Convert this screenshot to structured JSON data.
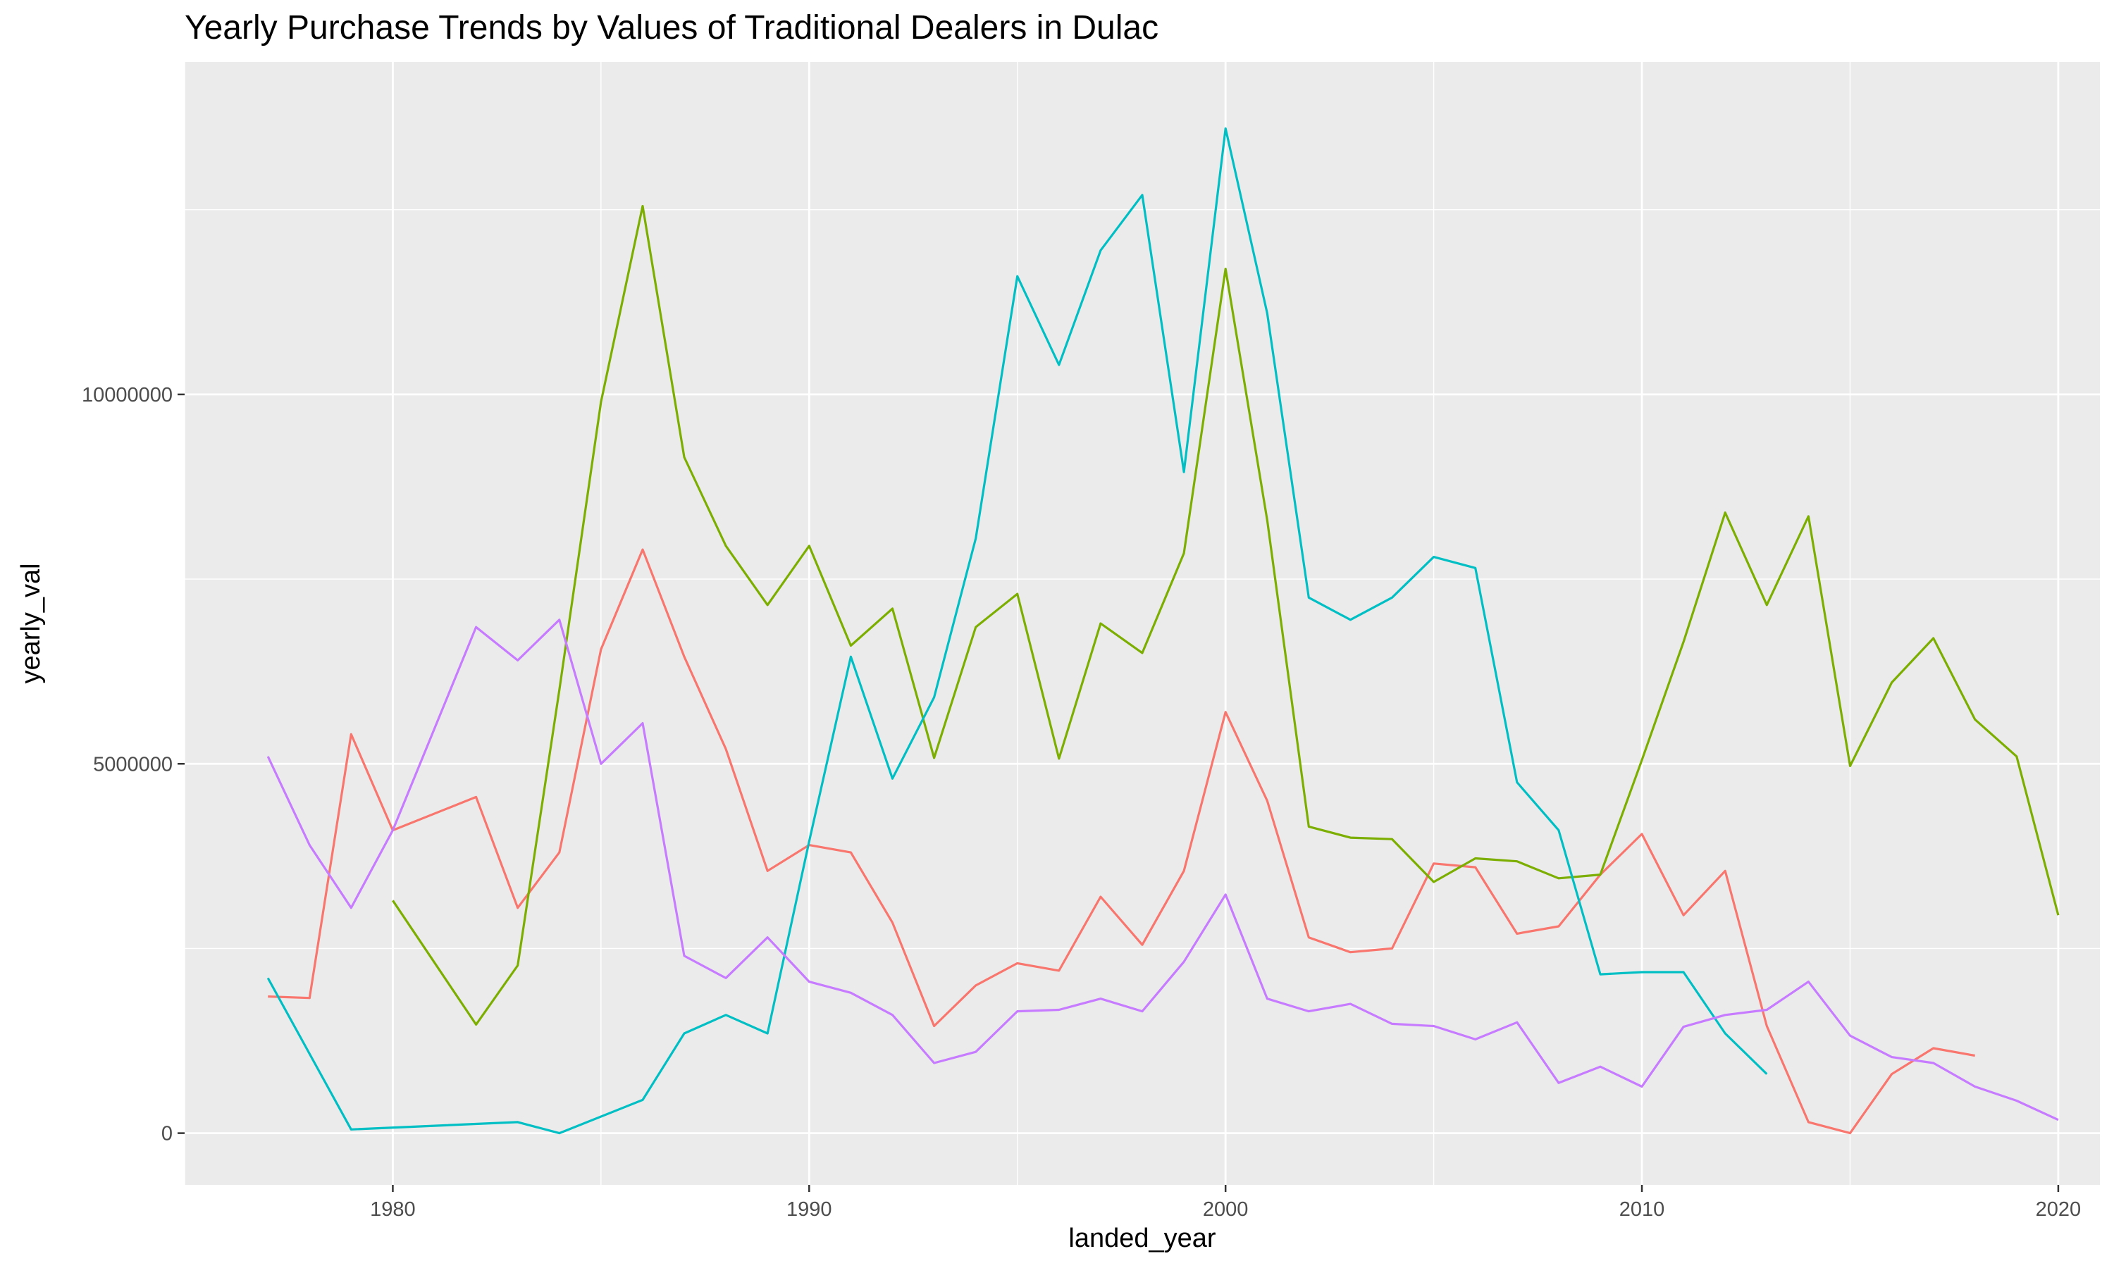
{
  "chart_data": {
    "type": "line",
    "title": "Yearly Purchase Trends by Values of Traditional Dealers in Dulac",
    "xlabel": "landed_year",
    "ylabel": "yearly_val",
    "xlim": [
      1975,
      2021
    ],
    "ylim": [
      -700000,
      14500000
    ],
    "x_ticks": [
      1980,
      1990,
      2000,
      2010,
      2020
    ],
    "y_ticks": [
      0,
      5000000,
      10000000
    ],
    "y_tick_labels": [
      "0",
      "5000000",
      "10000000"
    ],
    "grid": true,
    "legend": "none",
    "series": [
      {
        "color": "#F8766D",
        "x": [
          1977,
          1978,
          1979,
          1980,
          1982,
          1983,
          1984,
          1985,
          1986,
          1987,
          1988,
          1989,
          1990,
          1991,
          1992,
          1993,
          1994,
          1995,
          1996,
          1997,
          1998,
          1999,
          2000,
          2001,
          2002,
          2003,
          2004,
          2005,
          2006,
          2007,
          2008,
          2009,
          2010,
          2011,
          2012,
          2013,
          2014,
          2015,
          2016,
          2017,
          2018
        ],
        "y": [
          1850000,
          1830000,
          5400000,
          4100000,
          4550000,
          3050000,
          3800000,
          6550000,
          7900000,
          6450000,
          5200000,
          3550000,
          3900000,
          3800000,
          2850000,
          1450000,
          2000000,
          2300000,
          2200000,
          3200000,
          2550000,
          3550000,
          5700000,
          4500000,
          2650000,
          2450000,
          2500000,
          3650000,
          3600000,
          2700000,
          2800000,
          3500000,
          4050000,
          2950000,
          3550000,
          1450000,
          150000,
          0,
          800000,
          1150000,
          1050000
        ]
      },
      {
        "color": "#7CAE00",
        "x": [
          1980,
          1982,
          1983,
          1984,
          1985,
          1986,
          1987,
          1988,
          1989,
          1990,
          1991,
          1992,
          1993,
          1994,
          1995,
          1996,
          1997,
          1998,
          1999,
          2000,
          2001,
          2002,
          2003,
          2004,
          2005,
          2006,
          2007,
          2008,
          2009,
          2010,
          2011,
          2012,
          2013,
          2014,
          2015,
          2016,
          2017,
          2018,
          2019,
          2020
        ],
        "y": [
          3150000,
          1470000,
          2270000,
          6000000,
          9900000,
          12550000,
          9150000,
          7950000,
          7150000,
          7950000,
          6600000,
          7100000,
          5080000,
          6850000,
          7300000,
          5070000,
          6900000,
          6500000,
          7850000,
          11700000,
          8300000,
          4150000,
          4000000,
          3980000,
          3400000,
          3720000,
          3680000,
          3450000,
          3500000,
          5050000,
          6650000,
          8400000,
          7150000,
          8350000,
          4970000,
          6100000,
          6700000,
          5600000,
          5100000,
          2950000
        ]
      },
      {
        "color": "#00BFC4",
        "x": [
          1977,
          1979,
          1983,
          1984,
          1986,
          1987,
          1988,
          1989,
          1990,
          1991,
          1992,
          1993,
          1994,
          1995,
          1996,
          1997,
          1998,
          1999,
          2000,
          2001,
          2002,
          2003,
          2004,
          2005,
          2006,
          2007,
          2008,
          2009,
          2010,
          2011,
          2012,
          2013
        ],
        "y": [
          2100000,
          50000,
          150000,
          0,
          450000,
          1350000,
          1600000,
          1350000,
          3950000,
          6450000,
          4800000,
          5900000,
          8050000,
          11600000,
          10400000,
          11950000,
          12700000,
          8950000,
          13600000,
          11100000,
          7250000,
          6950000,
          7250000,
          7800000,
          7650000,
          4750000,
          4100000,
          2150000,
          2180000,
          2180000,
          1350000,
          800000
        ]
      },
      {
        "color": "#C77CFF",
        "x": [
          1977,
          1978,
          1979,
          1980,
          1982,
          1983,
          1984,
          1985,
          1986,
          1987,
          1988,
          1989,
          1990,
          1991,
          1992,
          1993,
          1994,
          1995,
          1996,
          1997,
          1998,
          1999,
          2000,
          2001,
          2002,
          2003,
          2004,
          2005,
          2006,
          2007,
          2008,
          2009,
          2010,
          2011,
          2012,
          2013,
          2014,
          2015,
          2016,
          2017,
          2018,
          2019,
          2020
        ],
        "y": [
          5100000,
          3900000,
          3050000,
          4100000,
          6850000,
          6400000,
          6950000,
          5000000,
          5550000,
          2400000,
          2100000,
          2650000,
          2050000,
          1900000,
          1600000,
          950000,
          1100000,
          1650000,
          1670000,
          1820000,
          1650000,
          2320000,
          3230000,
          1820000,
          1650000,
          1750000,
          1480000,
          1450000,
          1270000,
          1500000,
          680000,
          900000,
          630000,
          1440000,
          1600000,
          1670000,
          2050000,
          1320000,
          1030000,
          950000,
          630000,
          440000,
          180000
        ]
      }
    ]
  }
}
